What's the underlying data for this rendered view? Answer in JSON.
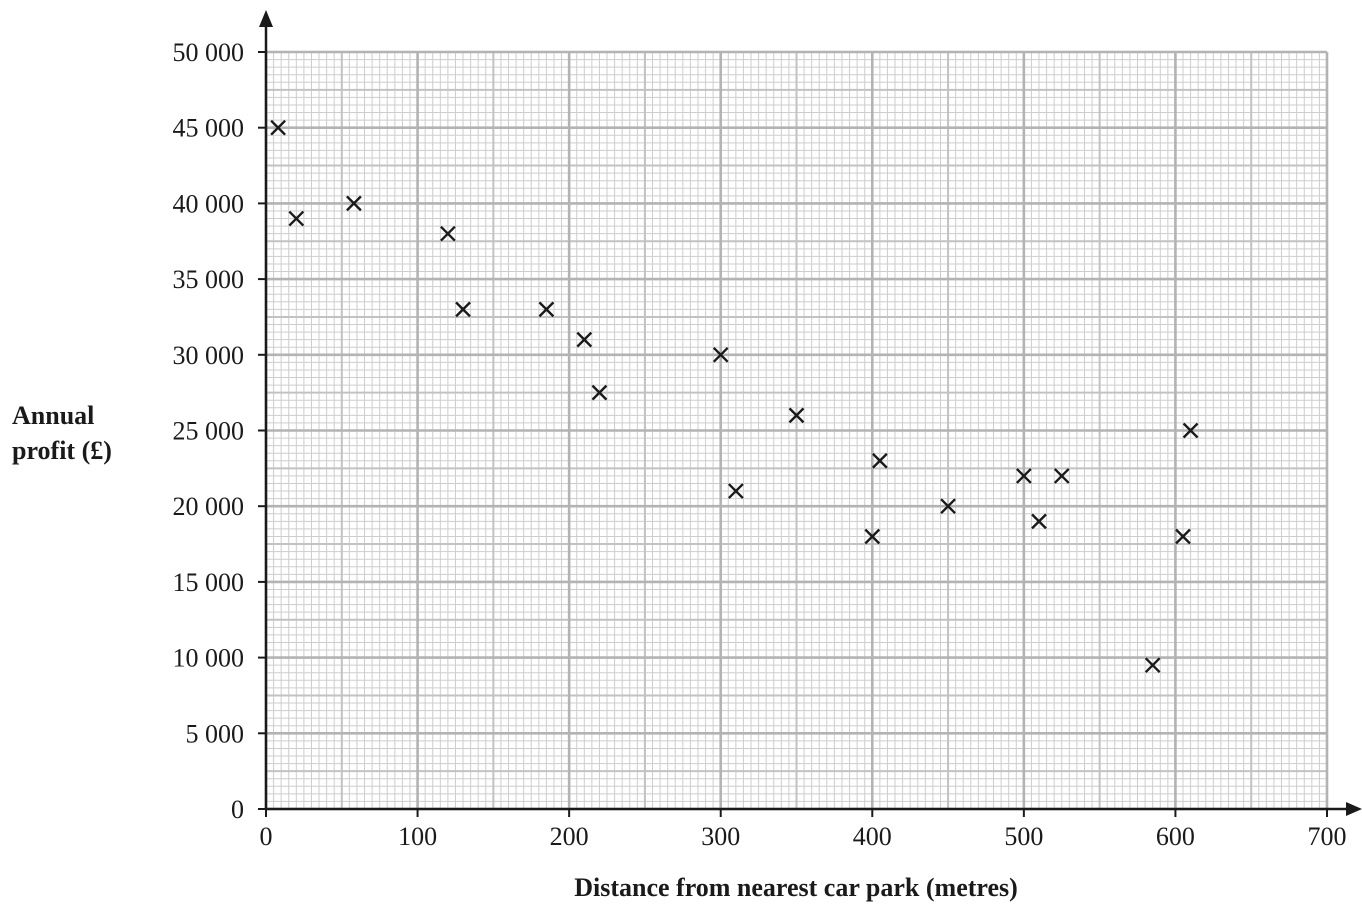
{
  "chart_data": {
    "type": "scatter",
    "title": "",
    "xlabel": "Distance from nearest car park (metres)",
    "ylabel_lines": [
      "Annual",
      "profit (£)"
    ],
    "xlim": [
      0,
      700
    ],
    "ylim": [
      0,
      50000
    ],
    "x_ticks": [
      0,
      100,
      200,
      300,
      400,
      500,
      600,
      700
    ],
    "x_tick_labels": [
      "0",
      "100",
      "200",
      "300",
      "400",
      "500",
      "600",
      "700"
    ],
    "y_ticks": [
      0,
      5000,
      10000,
      15000,
      20000,
      25000,
      30000,
      35000,
      40000,
      45000,
      50000
    ],
    "y_tick_labels": [
      "0",
      "5 000",
      "10 000",
      "15 000",
      "20 000",
      "25 000",
      "30 000",
      "35 000",
      "40 000",
      "45 000",
      "50 000"
    ],
    "grid": true,
    "marker": "cross",
    "points": [
      {
        "x": 8,
        "y": 45000
      },
      {
        "x": 20,
        "y": 39000
      },
      {
        "x": 58,
        "y": 40000
      },
      {
        "x": 120,
        "y": 38000
      },
      {
        "x": 130,
        "y": 33000
      },
      {
        "x": 185,
        "y": 33000
      },
      {
        "x": 210,
        "y": 31000
      },
      {
        "x": 220,
        "y": 27500
      },
      {
        "x": 300,
        "y": 30000
      },
      {
        "x": 310,
        "y": 21000
      },
      {
        "x": 350,
        "y": 26000
      },
      {
        "x": 400,
        "y": 18000
      },
      {
        "x": 405,
        "y": 23000
      },
      {
        "x": 450,
        "y": 20000
      },
      {
        "x": 500,
        "y": 22000
      },
      {
        "x": 510,
        "y": 19000
      },
      {
        "x": 525,
        "y": 22000
      },
      {
        "x": 585,
        "y": 9500
      },
      {
        "x": 605,
        "y": 18000
      },
      {
        "x": 610,
        "y": 25000
      }
    ]
  }
}
